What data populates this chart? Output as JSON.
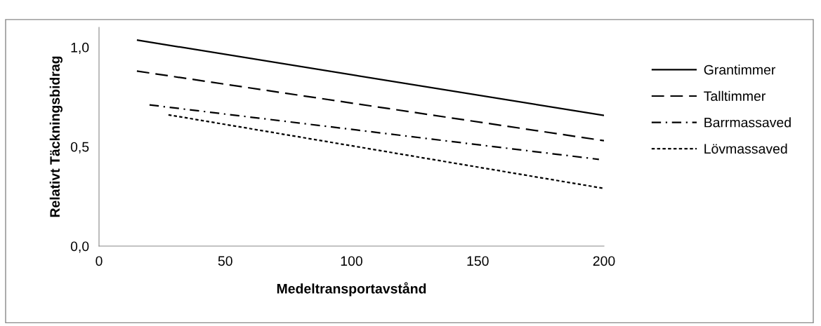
{
  "chart_data": {
    "type": "line",
    "xlabel": "Medeltransportavstånd",
    "ylabel": "Relativt Täckningsbidrag",
    "xlim": [
      0,
      200
    ],
    "xticks": [
      0,
      50,
      100,
      150,
      200
    ],
    "ylim": [
      0,
      1.1
    ],
    "yticks": [
      {
        "value": 0,
        "label": "0,0"
      },
      {
        "value": 0.5,
        "label": "0,5"
      },
      {
        "value": 1.0,
        "label": "1,0"
      }
    ],
    "grid": false,
    "legend": "right",
    "marker": "none",
    "series": [
      {
        "name": "Grantimmer",
        "color": "#000000",
        "line_style": "solid",
        "x": [
          15,
          200
        ],
        "values": [
          1.036,
          0.657
        ]
      },
      {
        "name": "Talltimmer",
        "color": "#000000",
        "line_style": "dashed",
        "x": [
          15,
          200
        ],
        "values": [
          0.88,
          0.53
        ]
      },
      {
        "name": "Barrmassaved",
        "color": "#000000",
        "line_style": "dashdot",
        "x": [
          20,
          198
        ],
        "values": [
          0.71,
          0.436
        ]
      },
      {
        "name": "Lövmassaved",
        "color": "#000000",
        "line_style": "dotted",
        "x": [
          27.5,
          200
        ],
        "values": [
          0.66,
          0.29
        ]
      }
    ]
  }
}
